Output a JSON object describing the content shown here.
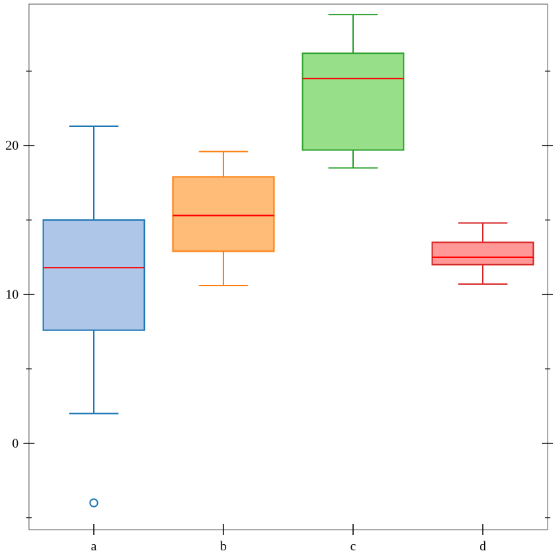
{
  "chart_data": {
    "type": "box",
    "categories": [
      "a",
      "b",
      "c",
      "d"
    ],
    "y_ticks": [
      0,
      10,
      20
    ],
    "y_minor_ticks": [
      -5,
      5,
      15,
      25
    ],
    "ylim": [
      -5.8,
      29.5
    ],
    "grid": false,
    "series": [
      {
        "category": "a",
        "whisker_low": 2.0,
        "q1": 7.6,
        "median": 11.8,
        "q3": 15.0,
        "whisker_high": 21.3,
        "outliers": [
          -4.0
        ],
        "stroke": "#1f77b4",
        "fill": "#aec7e8"
      },
      {
        "category": "b",
        "whisker_low": 10.6,
        "q1": 12.9,
        "median": 15.3,
        "q3": 17.9,
        "whisker_high": 19.6,
        "outliers": [],
        "stroke": "#ff7f0e",
        "fill": "#ffbb78"
      },
      {
        "category": "c",
        "whisker_low": 18.5,
        "q1": 19.7,
        "median": 24.5,
        "q3": 26.2,
        "whisker_high": 28.8,
        "outliers": [],
        "stroke": "#2ca02c",
        "fill": "#98df8a"
      },
      {
        "category": "d",
        "whisker_low": 10.7,
        "q1": 12.0,
        "median": 12.5,
        "q3": 13.5,
        "whisker_high": 14.8,
        "outliers": [],
        "stroke": "#d62728",
        "fill": "#ff9896"
      }
    ],
    "median_color": "#ff0000"
  }
}
